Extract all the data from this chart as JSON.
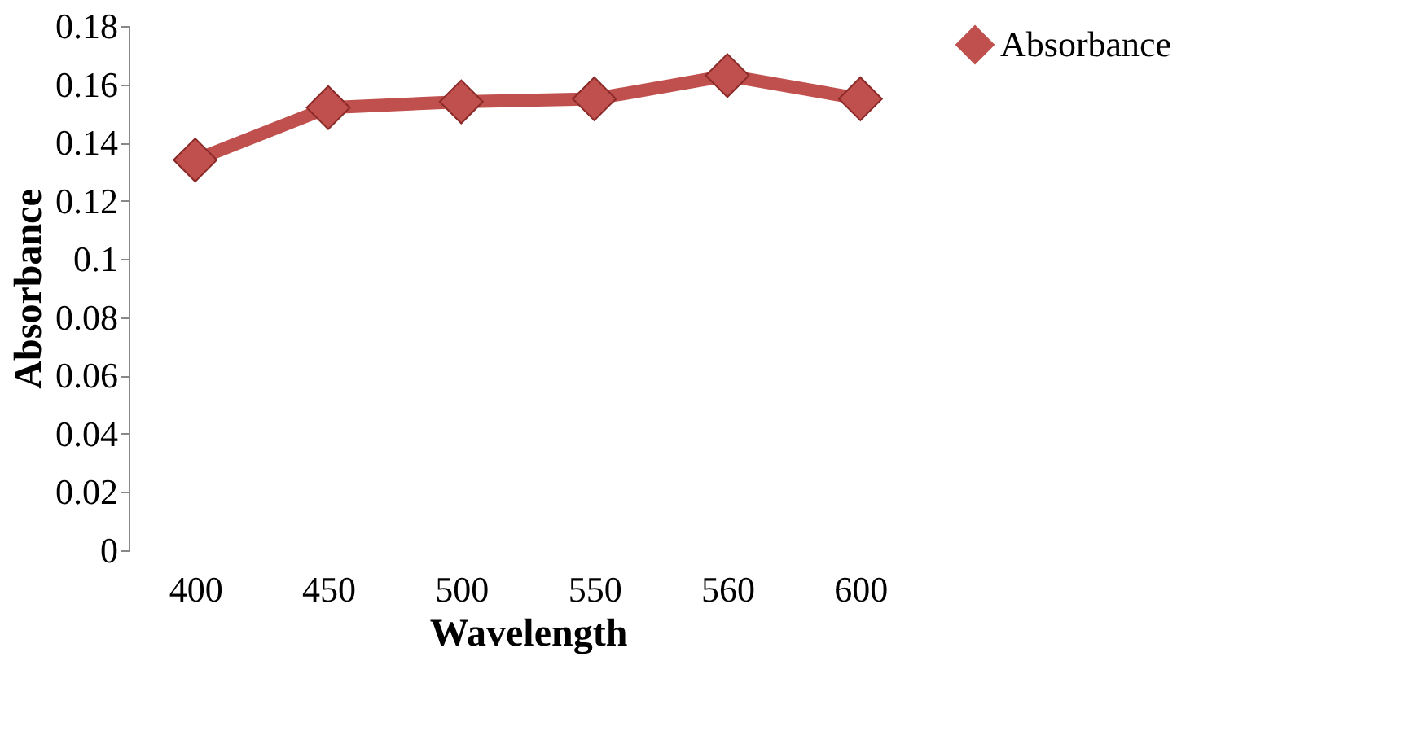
{
  "chart_data": {
    "type": "line",
    "xlabel": "Wavelength",
    "ylabel": "Absorbance",
    "categories": [
      "400",
      "450",
      "500",
      "550",
      "560",
      "600"
    ],
    "series": [
      {
        "name": "Absorbance",
        "color": "#c0504d",
        "values": [
          0.134,
          0.152,
          0.154,
          0.155,
          0.163,
          0.155
        ]
      }
    ],
    "ylim": [
      0,
      0.18
    ],
    "yticks": [
      0,
      0.02,
      0.04,
      0.06,
      0.08,
      0.1,
      0.12,
      0.14,
      0.16,
      0.18
    ],
    "grid": false,
    "legend": "right",
    "marker": "diamond",
    "line_style": "solid"
  }
}
